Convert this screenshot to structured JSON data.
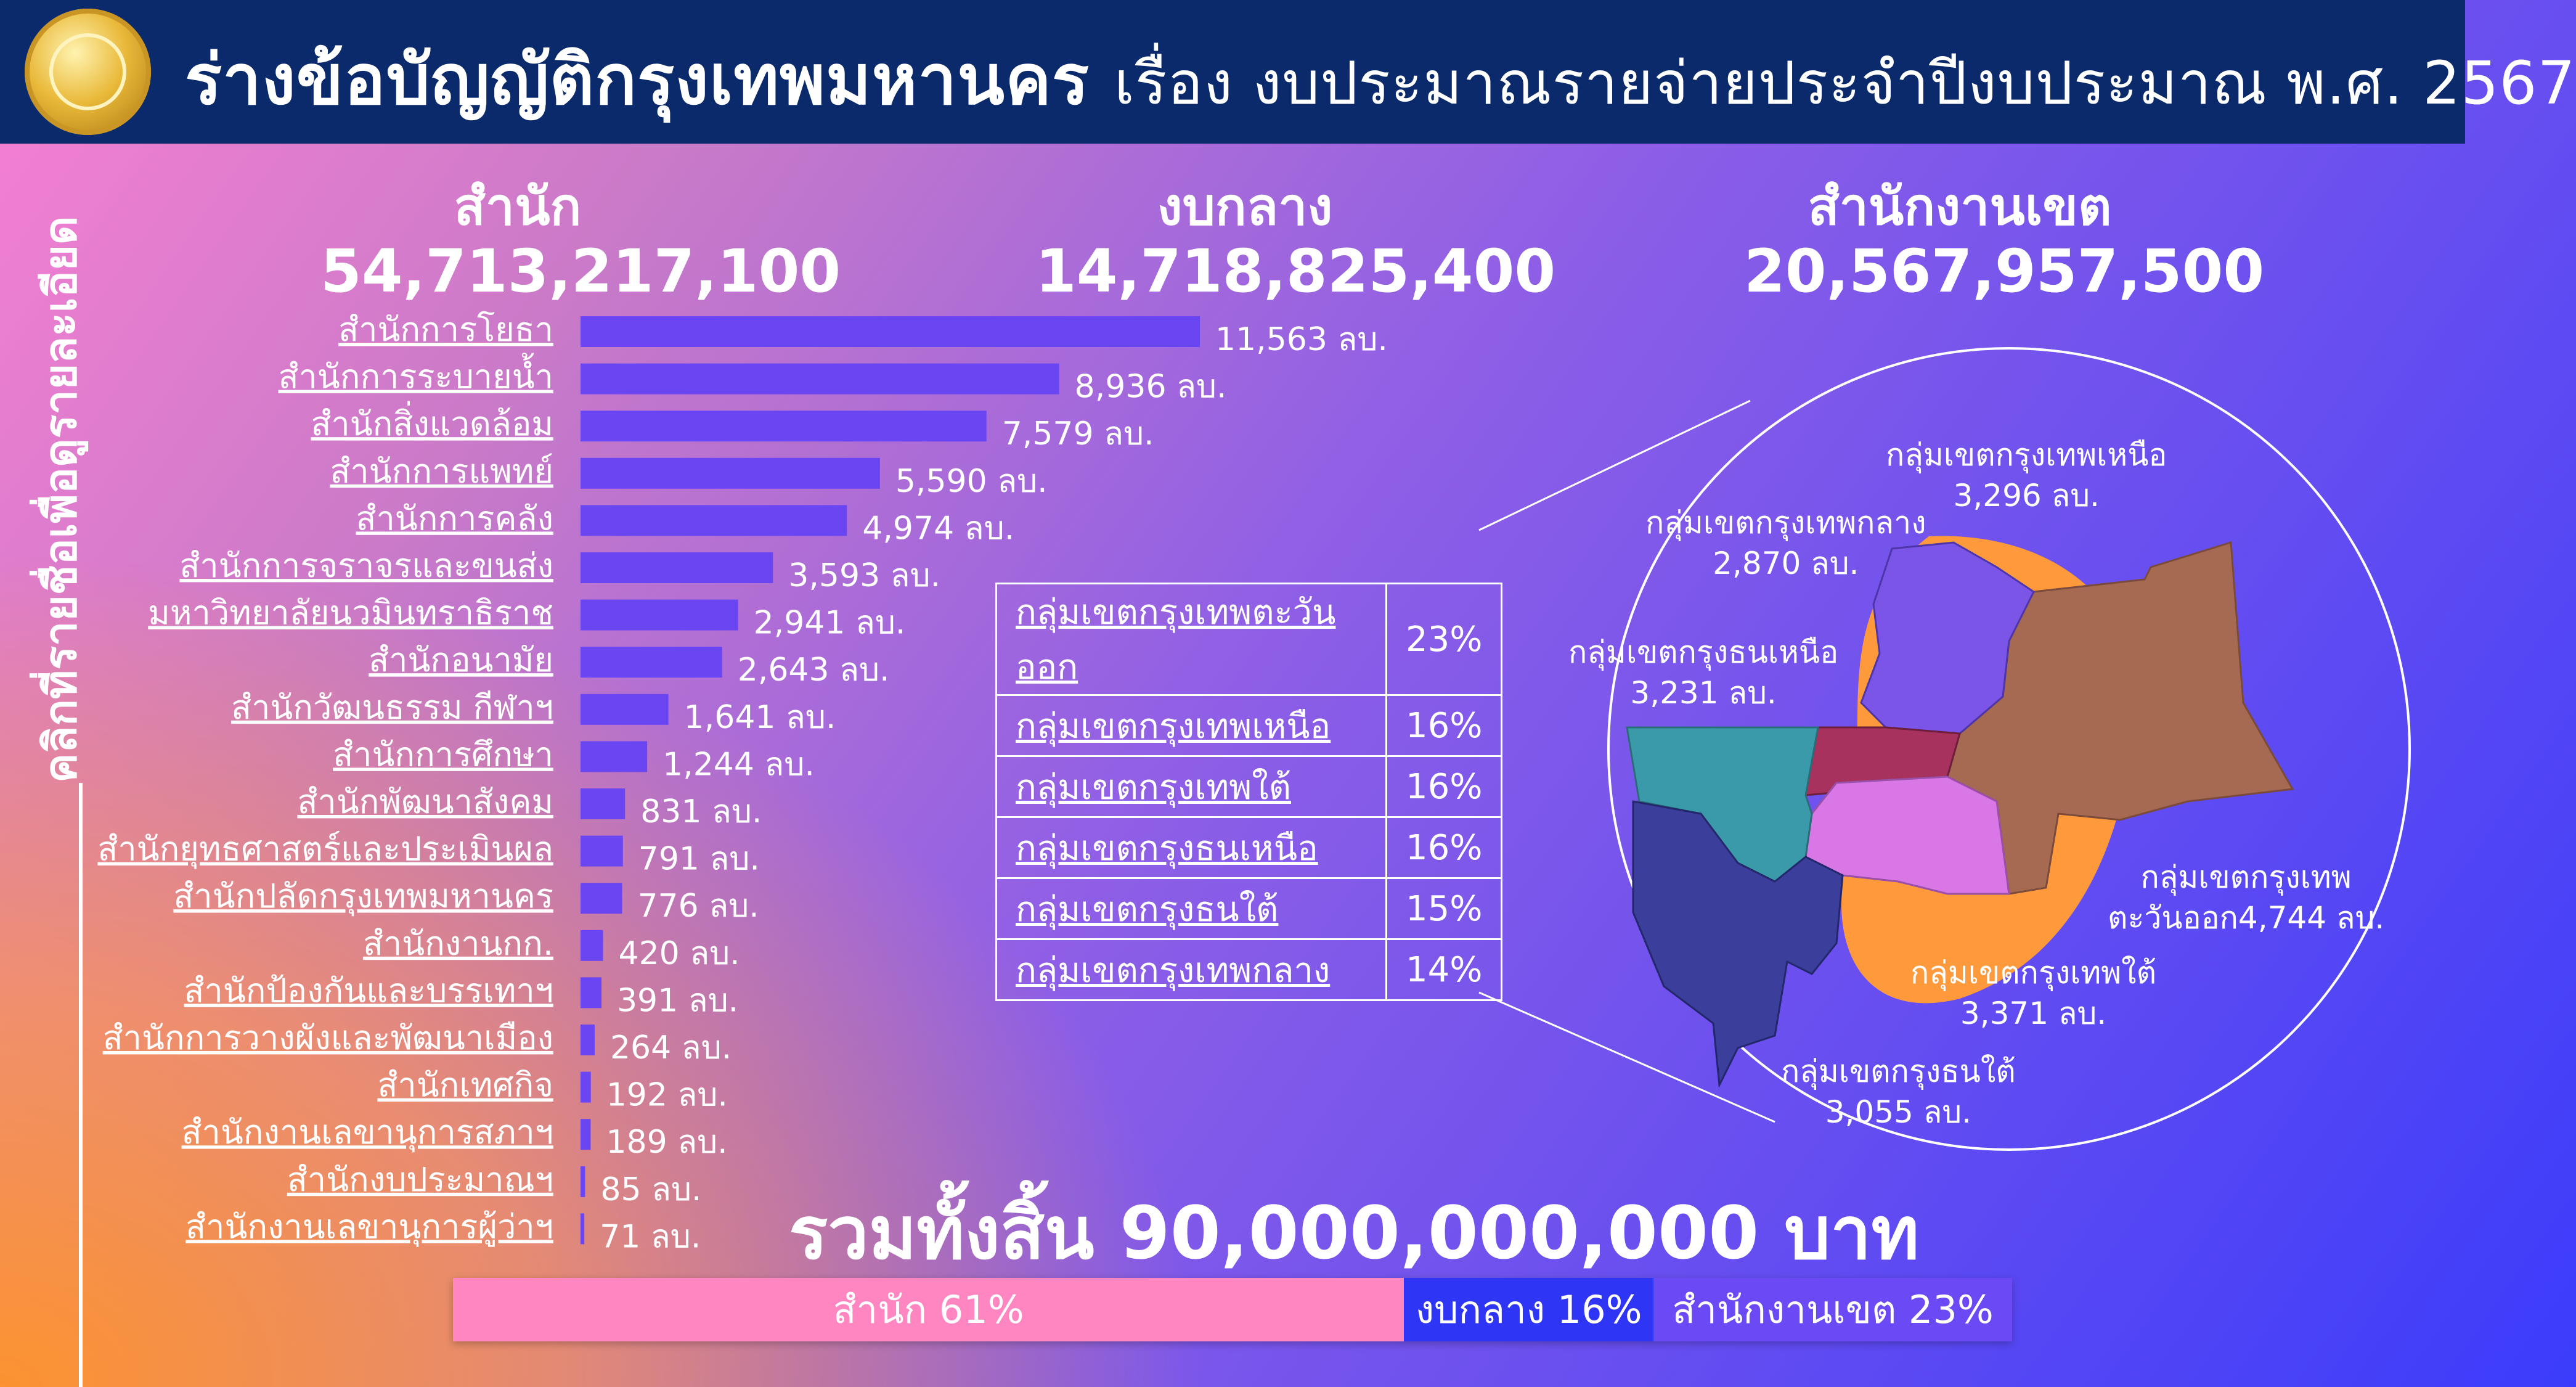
{
  "header": {
    "title_main": "ร่างข้อบัญญัติกรุงเทพมหานคร",
    "title_sub": "เรื่อง งบประมาณรายจ่ายประจำปีงบประมาณ พ.ศ. 2567"
  },
  "sidebar": {
    "hint": "คลิกที่รายชื่อเพื่อดูรายละเอียด"
  },
  "summary": [
    {
      "label": "สำนัก",
      "value": "54,713,217,100"
    },
    {
      "label": "งบกลาง",
      "value": "14,718,825,400"
    },
    {
      "label": "สำนักงานเขต",
      "value": "20,567,957,500"
    }
  ],
  "chart_data": {
    "type": "bar",
    "orientation": "horizontal",
    "unit": "ลบ.",
    "categories": [
      "สำนักการโยธา",
      "สำนักการระบายน้ำ",
      "สำนักสิ่งแวดล้อม",
      "สำนักการแพทย์",
      "สำนักการคลัง",
      "สำนักการจราจรและขนส่ง",
      "มหาวิทยาลัยนวมินทราธิราช",
      "สำนักอนามัย",
      "สำนักวัฒนธรรม กีฬาฯ",
      "สำนักการศึกษา",
      "สำนักพัฒนาสังคม",
      "สำนักยุทธศาสตร์และประเมินผล",
      "สำนักปลัดกรุงเทพมหานคร",
      "สำนักงานกก.",
      "สำนักป้องกันและบรรเทาฯ",
      "สำนักการวางผังและพัฒนาเมือง",
      "สำนักเทศกิจ",
      "สำนักงานเลขานุการสภาฯ",
      "สำนักงบประมาณฯ",
      "สำนักงานเลขานุการผู้ว่าฯ"
    ],
    "values": [
      11563,
      8936,
      7579,
      5590,
      4974,
      3593,
      2941,
      2643,
      1641,
      1244,
      831,
      791,
      776,
      420,
      391,
      264,
      192,
      189,
      85,
      71
    ],
    "value_labels": [
      "11,563",
      "8,936",
      "7,579",
      "5,590",
      "4,974",
      "3,593",
      "2,941",
      "2,643",
      "1,641",
      "1,244",
      "831",
      "791",
      "776",
      "420",
      "391",
      "264",
      "192",
      "189",
      "85",
      "71"
    ],
    "bar_color": "#6a46f2"
  },
  "district_table": [
    {
      "name": "กลุ่มเขตกรุงเทพตะวันออก",
      "percent": "23%"
    },
    {
      "name": "กลุ่มเขตกรุงเทพเหนือ",
      "percent": "16%"
    },
    {
      "name": "กลุ่มเขตกรุงเทพใต้",
      "percent": "16%"
    },
    {
      "name": "กลุ่มเขตกรุงธนเหนือ",
      "percent": "16%"
    },
    {
      "name": "กลุ่มเขตกรุงธนใต้",
      "percent": "15%"
    },
    {
      "name": "กลุ่มเขตกรุงเทพกลาง",
      "percent": "14%"
    }
  ],
  "map": {
    "labels": [
      {
        "name": "กลุ่มเขตกรุงเทพเหนือ",
        "value": "3,296 ลบ."
      },
      {
        "name": "กลุ่มเขตกรุงเทพกลาง",
        "value": "2,870 ลบ."
      },
      {
        "name": "กลุ่มเขตกรุงธนเหนือ",
        "value": "3,231 ลบ."
      },
      {
        "name": "กลุ่มเขตกรุงเทพ",
        "value": "ตะวันออก4,744 ลบ."
      },
      {
        "name": "กลุ่มเขตกรุงเทพใต้",
        "value": "3,371 ลบ."
      },
      {
        "name": "กลุ่มเขตกรุงธนใต้",
        "value": "3,055 ลบ."
      }
    ],
    "colors": {
      "north": "#7a55e8",
      "central": "#a8325e",
      "east": "#a66a52",
      "south": "#d977e6",
      "thon_north": "#3b9aaa",
      "thon_south": "#3b3f9b",
      "highlight": "#ff9a3c"
    }
  },
  "total": {
    "text": "รวมทั้งสิ้น 90,000,000,000 บาท"
  },
  "share": [
    {
      "label": "สำนัก 61%",
      "fraction": 0.61,
      "color": "#ff86c0"
    },
    {
      "label": "งบกลาง 16%",
      "fraction": 0.16,
      "color": "#2f35f5"
    },
    {
      "label": "สำนักงานเขต 23%",
      "fraction": 0.23,
      "color": "#6b49f5"
    }
  ]
}
